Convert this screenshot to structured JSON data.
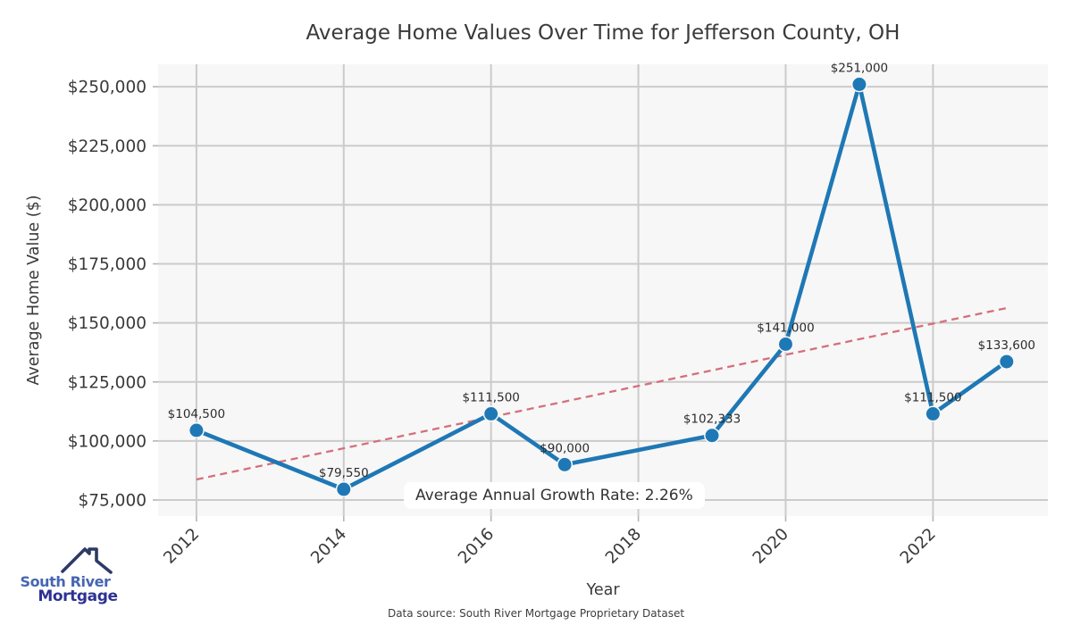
{
  "page": {
    "footer": "Data source: South River Mortgage Proprietary Dataset"
  },
  "logo": {
    "line1": "South River",
    "line2": "Mortgage",
    "roof_color": "#2d3a66"
  },
  "chart_data": {
    "type": "line",
    "title": "Average Home Values Over Time for Jefferson County, OH",
    "xlabel": "Year",
    "ylabel": "Average Home Value ($)",
    "series": [
      {
        "name": "Average Home Value",
        "x": [
          2012,
          2014,
          2016,
          2017,
          2019,
          2020,
          2021,
          2022,
          2023
        ],
        "y": [
          104500,
          79550,
          111500,
          90000,
          102333,
          141000,
          251000,
          111500,
          133600
        ],
        "point_labels": [
          "$104,500",
          "$79,550",
          "$111,500",
          "$90,000",
          "$102,333",
          "$141,000",
          "$251,000",
          "$111,500",
          "$133,600"
        ],
        "color": "#1e78b5"
      }
    ],
    "trend_line": {
      "x": [
        2012,
        2023
      ],
      "y": [
        83700,
        156300
      ],
      "style": "dashed",
      "color": "#d56f7b"
    },
    "annotation": "Average Annual Growth Rate: 2.26%",
    "x_ticks": [
      2012,
      2014,
      2016,
      2018,
      2020,
      2022
    ],
    "x_tick_labels": [
      "2012",
      "2014",
      "2016",
      "2018",
      "2020",
      "2022"
    ],
    "y_ticks": [
      75000,
      100000,
      125000,
      150000,
      175000,
      200000,
      225000,
      250000
    ],
    "y_tick_labels": [
      "$75,000",
      "$100,000",
      "$125,000",
      "$150,000",
      "$175,000",
      "$200,000",
      "$225,000",
      "$250,000"
    ],
    "xlim": [
      2011.48,
      2023.56
    ],
    "ylim": [
      68200,
      259500
    ],
    "grid": true,
    "legend": "none",
    "plot_bg": "#f7f7f7",
    "grid_color": "#cbcbcb",
    "tick_color": "#b5b5b5",
    "tick_label_color": "#3a3a3a",
    "point_label_color": "#2d2d2d"
  }
}
